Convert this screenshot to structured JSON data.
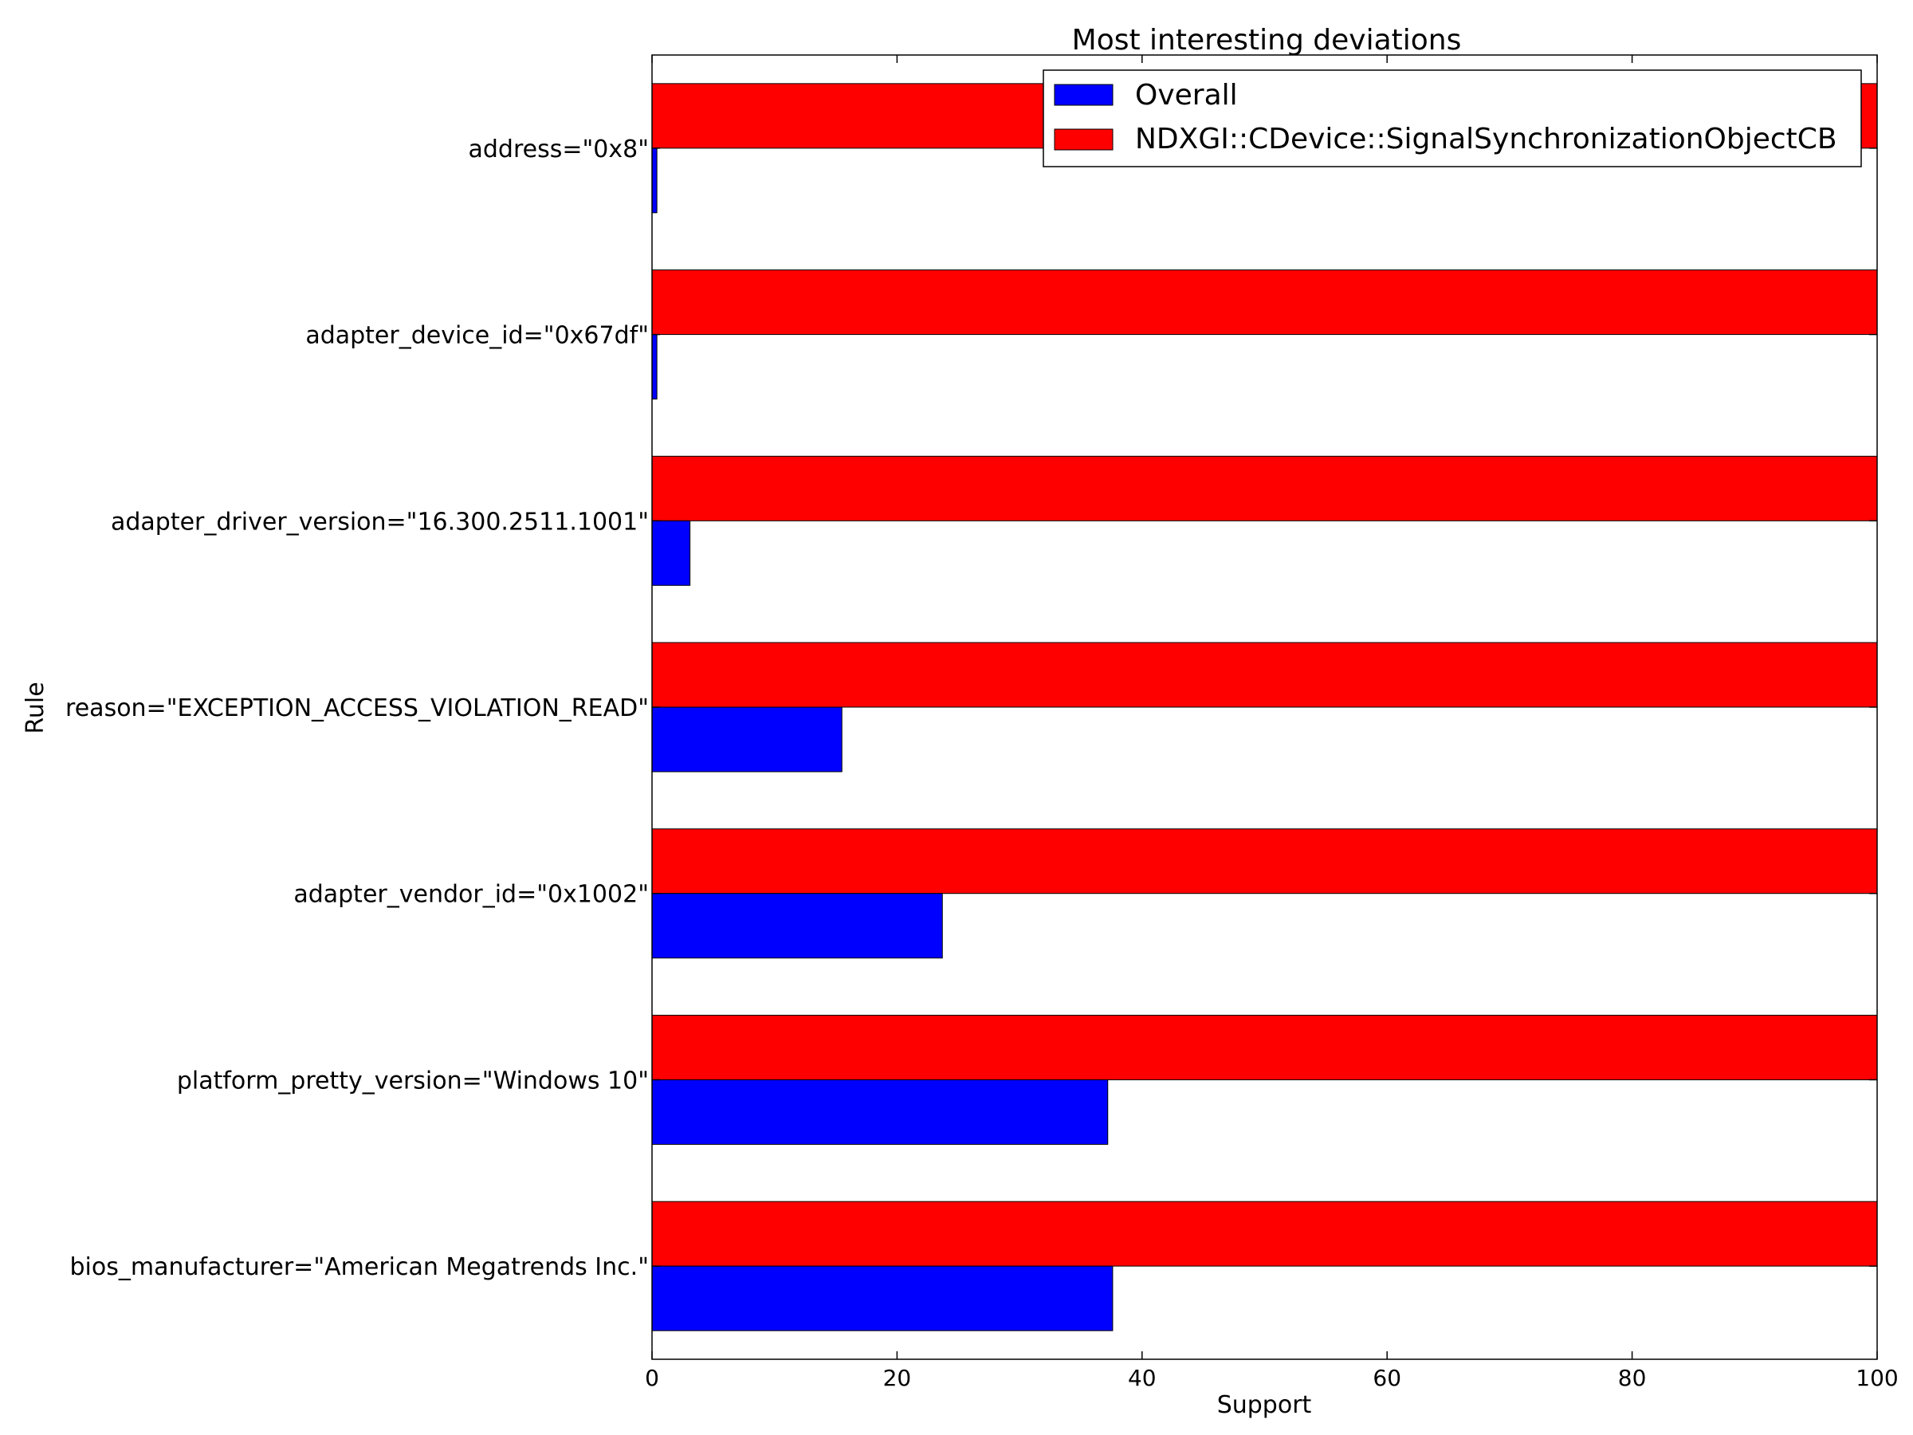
{
  "chart_data": {
    "type": "bar",
    "orientation": "horizontal",
    "title": "Most interesting deviations",
    "xlabel": "Support",
    "ylabel": "Rule",
    "xlim": [
      0,
      100
    ],
    "xticks": [
      0,
      20,
      40,
      60,
      80,
      100
    ],
    "categories": [
      "address=\"0x8\"",
      "adapter_device_id=\"0x67df\"",
      "adapter_driver_version=\"16.300.2511.1001\"",
      "reason=\"EXCEPTION_ACCESS_VIOLATION_READ\"",
      "adapter_vendor_id=\"0x1002\"",
      "platform_pretty_version=\"Windows 10\"",
      "bios_manufacturer=\"American Megatrends Inc.\""
    ],
    "series": [
      {
        "name": "Overall",
        "color": "#0000ff",
        "values": [
          0.4,
          0.4,
          3.1,
          15.5,
          23.7,
          37.2,
          37.6
        ]
      },
      {
        "name": "NDXGI::CDevice::SignalSynchronizationObjectCB",
        "color": "#ff0000",
        "values": [
          100,
          100,
          100,
          100,
          100,
          100,
          100
        ]
      }
    ],
    "legend_position": "top-right",
    "grid": false
  }
}
